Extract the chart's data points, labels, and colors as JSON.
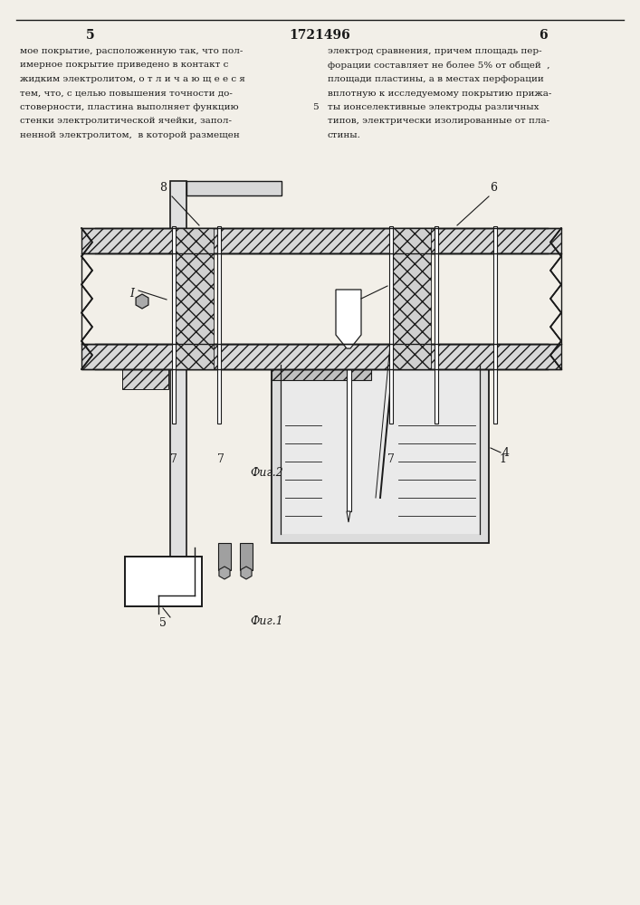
{
  "page_num_left": "5",
  "page_num_center": "1721496",
  "page_num_right": "6",
  "text_col1": [
    "мое покрытие, расположенную так, что пол-",
    "имерное покрытие приведено в контакт с",
    "жидким электролитом, о т л и ч а ю щ е е с я",
    "тем, что, с целью повышения точности до-",
    "стоверности, пластина выполняет функцию",
    "стенки электролитической ячейки, запол-",
    "ненной электролитом,  в которой размещен"
  ],
  "text_col2": [
    "электрод сравнения, причем площадь пер-",
    "форации составляет не более 5% от общей  ,",
    "площади пластины, а в местах перфорации",
    "вплотную к исследуемому покрытию прижа-",
    "ты ионселективные электроды различных",
    "типов, электрически изолированные от пла-",
    "стины."
  ],
  "inline_5": "5",
  "fig1_cap": "Фиг.1",
  "fig2_cap": "Фиг.2",
  "bg": "#f2efe8",
  "lc": "#1a1a1a"
}
